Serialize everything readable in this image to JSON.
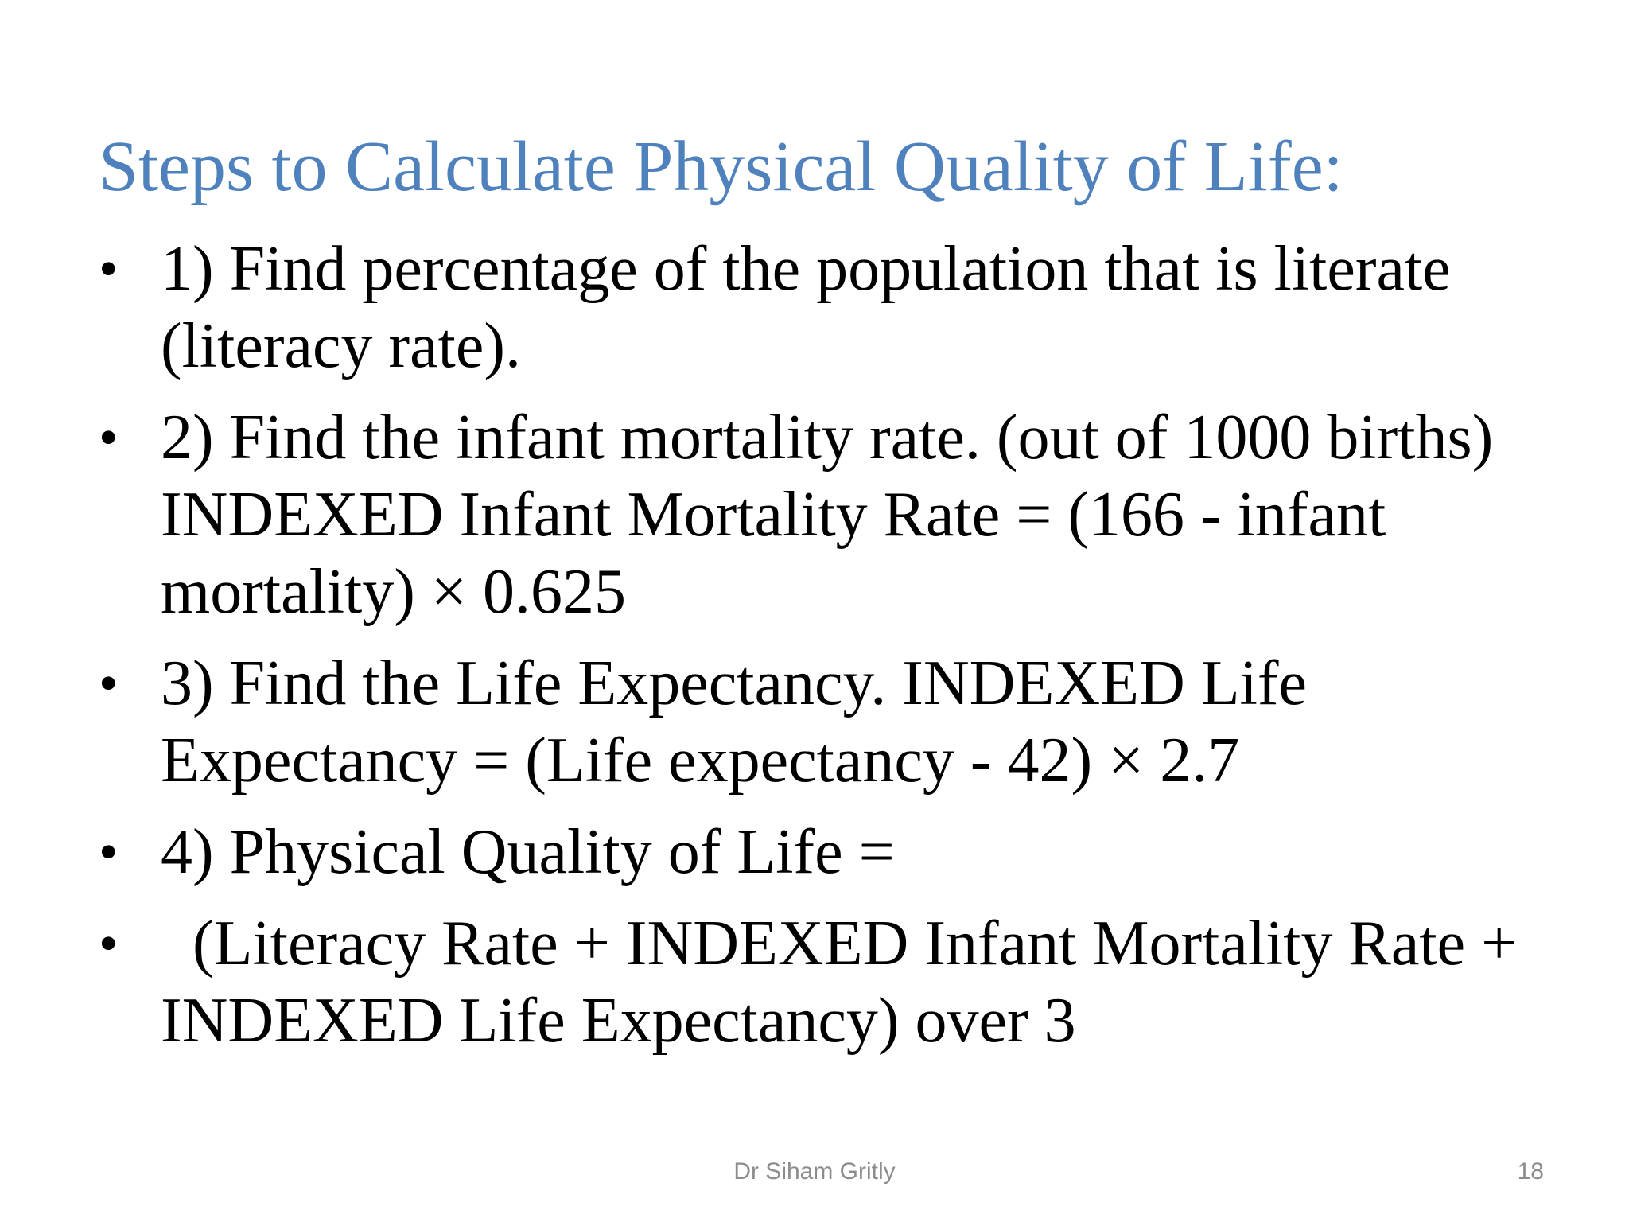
{
  "slide": {
    "title": "Steps to Calculate Physical Quality of Life:",
    "bullets": [
      {
        "lines": [
          "1) Find percentage of the population that is literate",
          "(literacy rate)."
        ]
      },
      {
        "lines": [
          "2) Find the infant mortality rate. (out of 1000 births)",
          "INDEXED Infant Mortality Rate = (166 - infant",
          "mortality) × 0.625"
        ]
      },
      {
        "lines": [
          "3) Find the Life Expectancy. INDEXED Life",
          "Expectancy = (Life expectancy - 42) × 2.7"
        ]
      },
      {
        "lines": [
          "4) Physical Quality of Life ="
        ]
      },
      {
        "lines": [
          "(Literacy Rate + INDEXED Infant Mortality Rate +",
          "INDEXED Life Expectancy) over 3"
        ]
      }
    ],
    "bullet_symbol": "•",
    "footer": {
      "author": "Dr Siham Gritly",
      "page_number": "18"
    },
    "colors": {
      "title": "#4f81bd",
      "body_text": "#000000",
      "footer_text": "#8c8c8c"
    }
  }
}
